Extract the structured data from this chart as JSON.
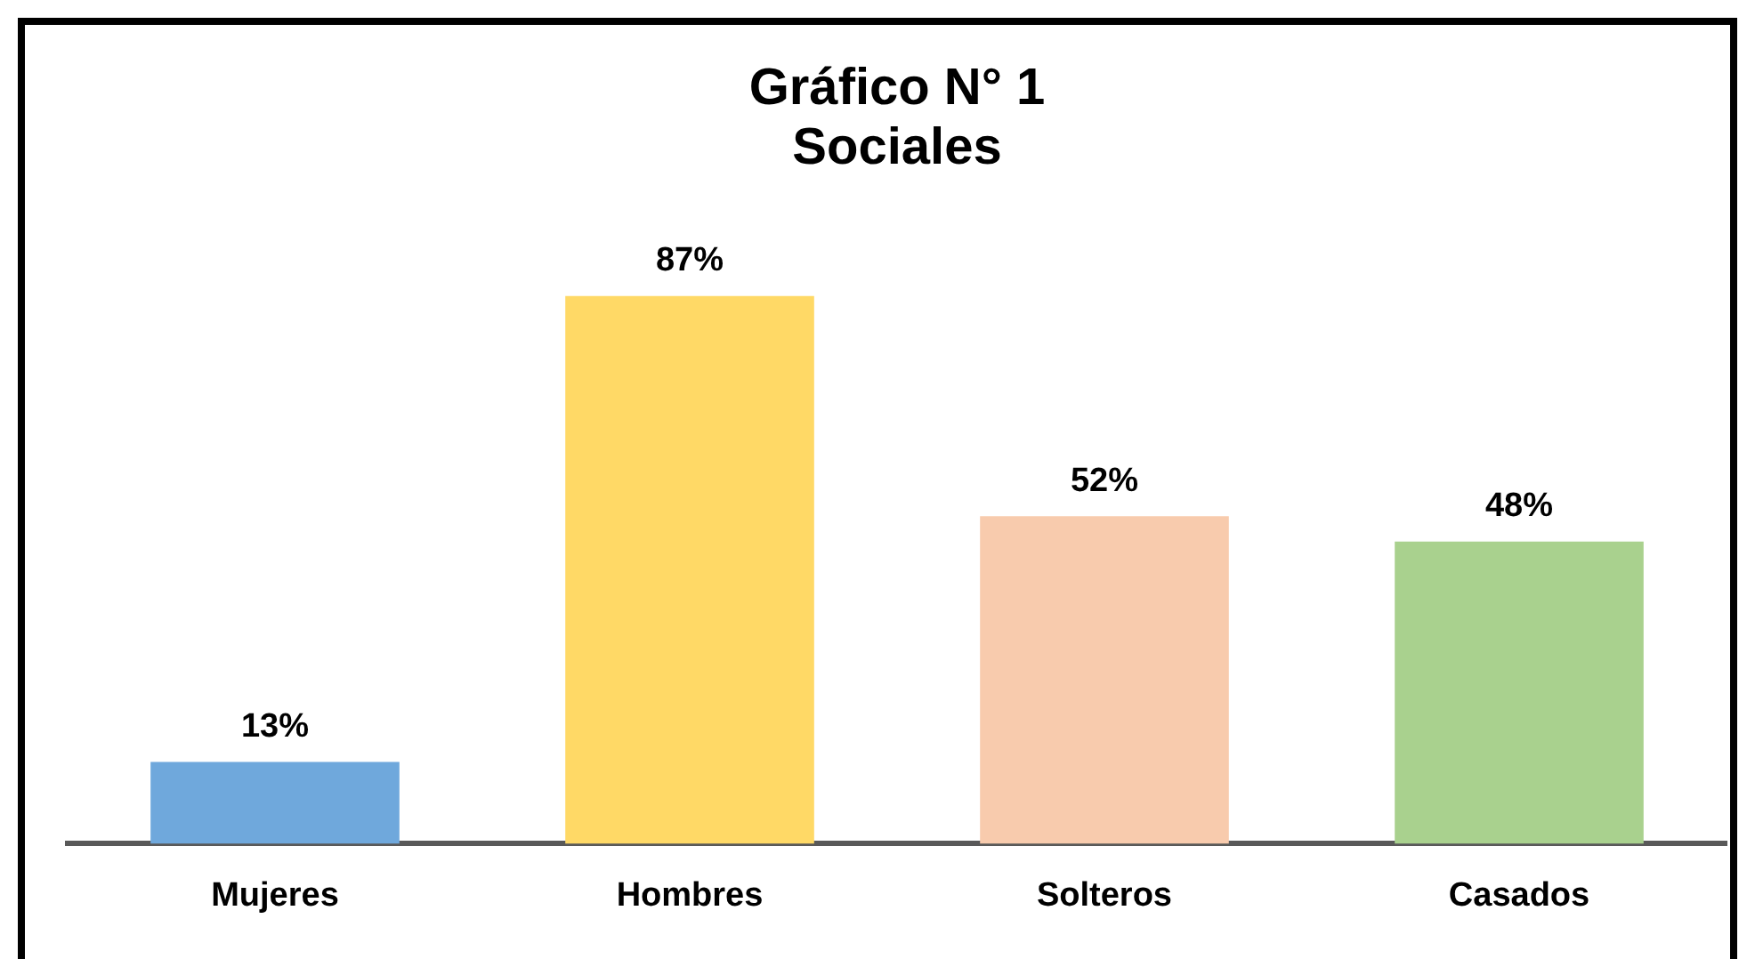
{
  "chart_data": {
    "type": "bar",
    "title": "Gráfico N° 1\nSociales",
    "categories": [
      "Mujeres",
      "Hombres",
      "Solteros",
      "Casados"
    ],
    "values": [
      13,
      87,
      52,
      48
    ],
    "colors": [
      "#6fa8dc",
      "#ffd966",
      "#f8cbad",
      "#a9d18e"
    ],
    "value_labels": [
      "13%",
      "87%",
      "52%",
      "48%"
    ],
    "grid": false,
    "legend": false
  }
}
